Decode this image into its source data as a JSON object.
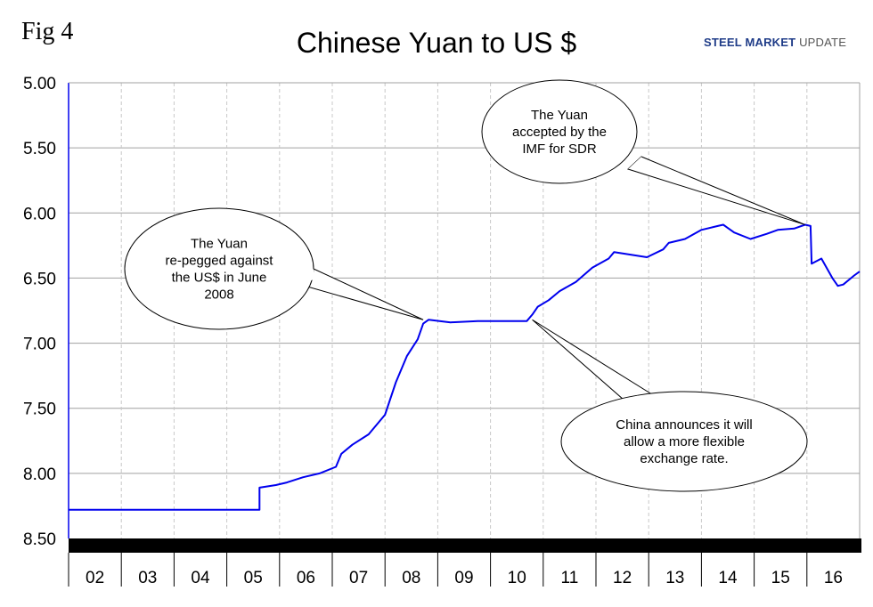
{
  "fig_label": "Fig 4",
  "logo": {
    "bold": "STEEL MARKET",
    "light": "UPDATE"
  },
  "chart_data": {
    "type": "line",
    "title": "Chinese Yuan to US $",
    "xlabel": "",
    "ylabel": "",
    "x_categories": [
      "02",
      "03",
      "04",
      "05",
      "06",
      "07",
      "08",
      "09",
      "10",
      "11",
      "12",
      "13",
      "14",
      "15",
      "16"
    ],
    "xlim": [
      2002.0,
      2016.5
    ],
    "ylim": [
      5.0,
      8.5
    ],
    "y_inverted": true,
    "y_ticks": [
      "5.00",
      "5.50",
      "6.00",
      "6.50",
      "7.00",
      "7.50",
      "8.00",
      "8.50"
    ],
    "grid": "both",
    "legend": "none",
    "series": [
      {
        "color": "#0000ee",
        "points": [
          [
            2002.0,
            8.28
          ],
          [
            2005.5,
            8.28
          ],
          [
            2005.5,
            8.11
          ],
          [
            2005.8,
            8.09
          ],
          [
            2006.0,
            8.07
          ],
          [
            2006.3,
            8.03
          ],
          [
            2006.6,
            8.0
          ],
          [
            2006.9,
            7.95
          ],
          [
            2007.0,
            7.85
          ],
          [
            2007.2,
            7.78
          ],
          [
            2007.5,
            7.7
          ],
          [
            2007.8,
            7.55
          ],
          [
            2008.0,
            7.3
          ],
          [
            2008.2,
            7.1
          ],
          [
            2008.4,
            6.97
          ],
          [
            2008.5,
            6.85
          ],
          [
            2008.6,
            6.82
          ],
          [
            2009.0,
            6.84
          ],
          [
            2009.5,
            6.83
          ],
          [
            2010.0,
            6.83
          ],
          [
            2010.4,
            6.83
          ],
          [
            2010.5,
            6.78
          ],
          [
            2010.6,
            6.72
          ],
          [
            2010.8,
            6.67
          ],
          [
            2011.0,
            6.6
          ],
          [
            2011.3,
            6.53
          ],
          [
            2011.6,
            6.42
          ],
          [
            2011.9,
            6.35
          ],
          [
            2012.0,
            6.3
          ],
          [
            2012.3,
            6.32
          ],
          [
            2012.6,
            6.34
          ],
          [
            2012.9,
            6.28
          ],
          [
            2013.0,
            6.23
          ],
          [
            2013.3,
            6.2
          ],
          [
            2013.6,
            6.13
          ],
          [
            2013.9,
            6.1
          ],
          [
            2014.0,
            6.09
          ],
          [
            2014.2,
            6.15
          ],
          [
            2014.5,
            6.2
          ],
          [
            2014.8,
            6.16
          ],
          [
            2015.0,
            6.13
          ],
          [
            2015.3,
            6.12
          ],
          [
            2015.5,
            6.09
          ],
          [
            2015.6,
            6.1
          ],
          [
            2015.62,
            6.39
          ],
          [
            2015.8,
            6.35
          ],
          [
            2016.0,
            6.5
          ],
          [
            2016.1,
            6.56
          ],
          [
            2016.2,
            6.55
          ],
          [
            2016.4,
            6.48
          ],
          [
            2016.5,
            6.45
          ]
        ]
      }
    ],
    "annotations": [
      {
        "id": "sdr",
        "lines": [
          "The Yuan",
          "accepted by the",
          "IMF for SDR"
        ],
        "x": 2015.5,
        "y": 6.09
      },
      {
        "id": "repeg",
        "lines": [
          "The Yuan",
          "re-pegged against",
          "the US$ in June",
          "2008"
        ],
        "x": 2008.5,
        "y": 6.82
      },
      {
        "id": "flexible",
        "lines": [
          "China announces it will",
          "allow a more flexible",
          "exchange rate."
        ],
        "x": 2010.5,
        "y": 6.82
      }
    ]
  }
}
